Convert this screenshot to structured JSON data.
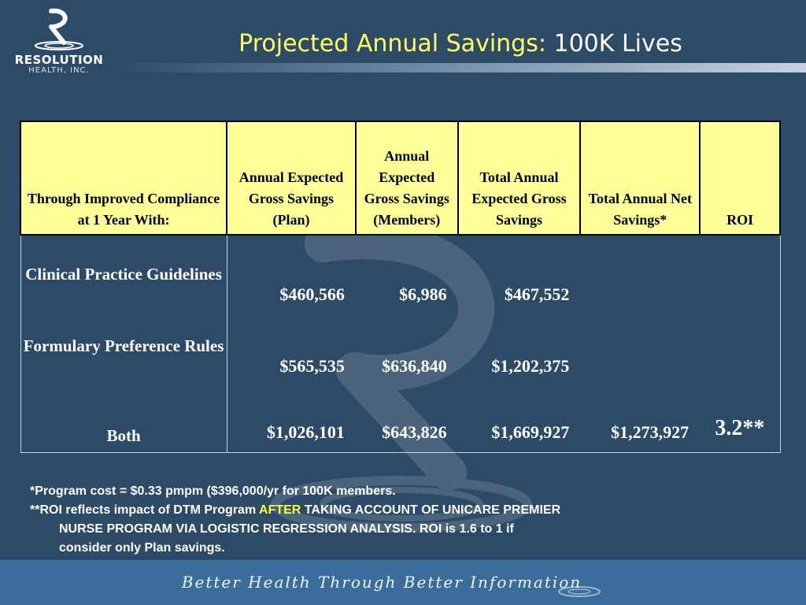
{
  "logo": {
    "name": "RESOLUTION",
    "sub": "HEALTH, INC."
  },
  "title": {
    "main": "Projected Annual Savings:",
    "highlight": "100K Lives"
  },
  "table": {
    "headers": [
      "Through Improved Compliance at 1 Year With:",
      "Annual Expected Gross Savings (Plan)",
      "Annual Expected Gross Savings (Members)",
      "Total Annual Expected Gross Savings",
      "Total Annual Net Savings*",
      "ROI"
    ],
    "rows": [
      {
        "label": "Clinical Practice Guidelines",
        "plan": "$460,566",
        "members": "$6,986",
        "total": "$467,552",
        "net": "",
        "roi": ""
      },
      {
        "label": "Formulary Preference Rules",
        "plan": "$565,535",
        "members": "$636,840",
        "total": "$1,202,375",
        "net": "",
        "roi": ""
      },
      {
        "label": "Both",
        "plan": "$1,026,101",
        "members": "$643,826",
        "total": "$1,669,927",
        "net": "$1,273,927",
        "roi": "3.2**"
      }
    ]
  },
  "notes": {
    "line1": "*Program cost = $0.33 pmpm ($396,000/yr for 100K members.",
    "line2_a": "**ROI reflects impact of DTM Program ",
    "line2_after": "AFTER",
    "line2_b": " TAKING ACCOUNT OF UNICARE PREMIER",
    "line3": "NURSE PROGRAM VIA LOGISTIC REGRESSION ANALYSIS. ROI is 1.6 to 1 if",
    "line4": "consider only Plan savings."
  },
  "footer": {
    "tagline": "Better Health Through Better Information"
  },
  "colors": {
    "background": "#2d4a66",
    "header_fill": "#ffff99",
    "roi_green": "#33ff33",
    "title_yellow": "#ffff66",
    "footer_bar": "#3a6d9b"
  },
  "icons": [
    "resolution-logo-icon",
    "swirl-watermark-icon"
  ]
}
